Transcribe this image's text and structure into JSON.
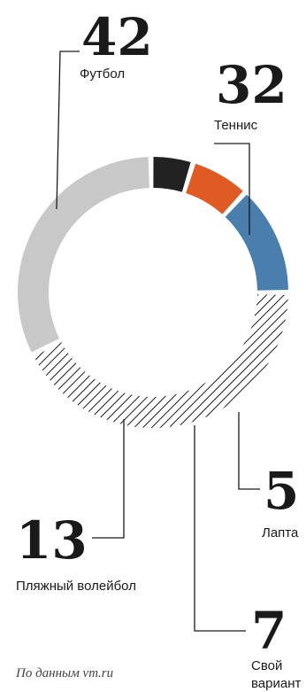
{
  "chart_data": {
    "type": "donut",
    "series": [
      {
        "label": "Футбол",
        "value": 42,
        "color": "#ffffff",
        "pattern": "hatch"
      },
      {
        "label": "Теннис",
        "value": 32,
        "color": "#c8c8c8"
      },
      {
        "label": "Лапта",
        "value": 5,
        "color": "#222222"
      },
      {
        "label": "Свой вариант",
        "value": 7,
        "color": "#e05a23"
      },
      {
        "label": "Пляжный волейбол",
        "value": 13,
        "color": "#4a7fad"
      }
    ],
    "value_labels": [
      "42",
      "32",
      "5",
      "7",
      "13"
    ]
  },
  "source": "По данным vm.ru"
}
